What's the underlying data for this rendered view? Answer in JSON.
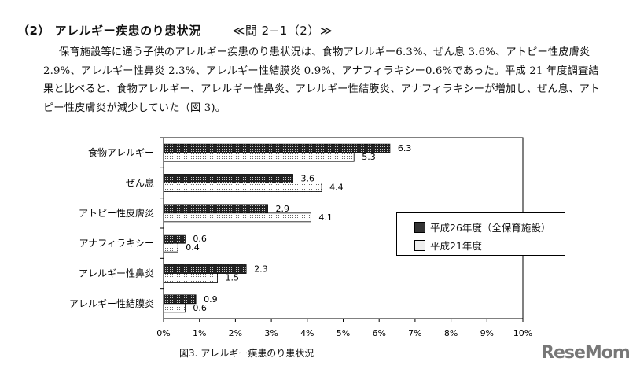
{
  "heading": {
    "title": "（2） アレルギー疾患のり患状況",
    "ref": "≪問 2−1（2）≫"
  },
  "paragraph": "保育施設等に通う子供のアレルギー疾患のり患状況は、食物アレルギー6.3%、ぜん息 3.6%、アトピー性皮膚炎 2.9%、アレルギー性鼻炎 2.3%、アレルギー性結膜炎 0.9%、アナフィラキシー0.6%であった。平成 21 年度調査結果と比べると、食物アレルギー、アレルギー性鼻炎、アレルギー性結膜炎、アナフィラキシーが増加し、ぜん息、アトピー性皮膚炎が減少していた（図 3)。",
  "chart_data": {
    "type": "bar",
    "orientation": "horizontal",
    "title": "図3. アレルギー疾患のり患状況",
    "categories": [
      "食物アレルギー",
      "ぜん息",
      "アトピー性皮膚炎",
      "アナフィラキシー",
      "アレルギー性鼻炎",
      "アレルギー性結膜炎"
    ],
    "series": [
      {
        "name": "平成26年度（全保育施設）",
        "values": [
          6.3,
          3.6,
          2.9,
          0.6,
          2.3,
          0.9
        ],
        "pattern": "dark-checker"
      },
      {
        "name": "平成21年度",
        "values": [
          5.3,
          4.4,
          4.1,
          0.4,
          1.5,
          0.6
        ],
        "pattern": "light-dots"
      }
    ],
    "xlim": [
      0,
      10
    ],
    "xticks": [
      "0%",
      "1%",
      "2%",
      "3%",
      "4%",
      "5%",
      "6%",
      "7%",
      "8%",
      "9%",
      "10%"
    ],
    "grid": false,
    "legend": "right"
  },
  "logo": "ReseMom"
}
